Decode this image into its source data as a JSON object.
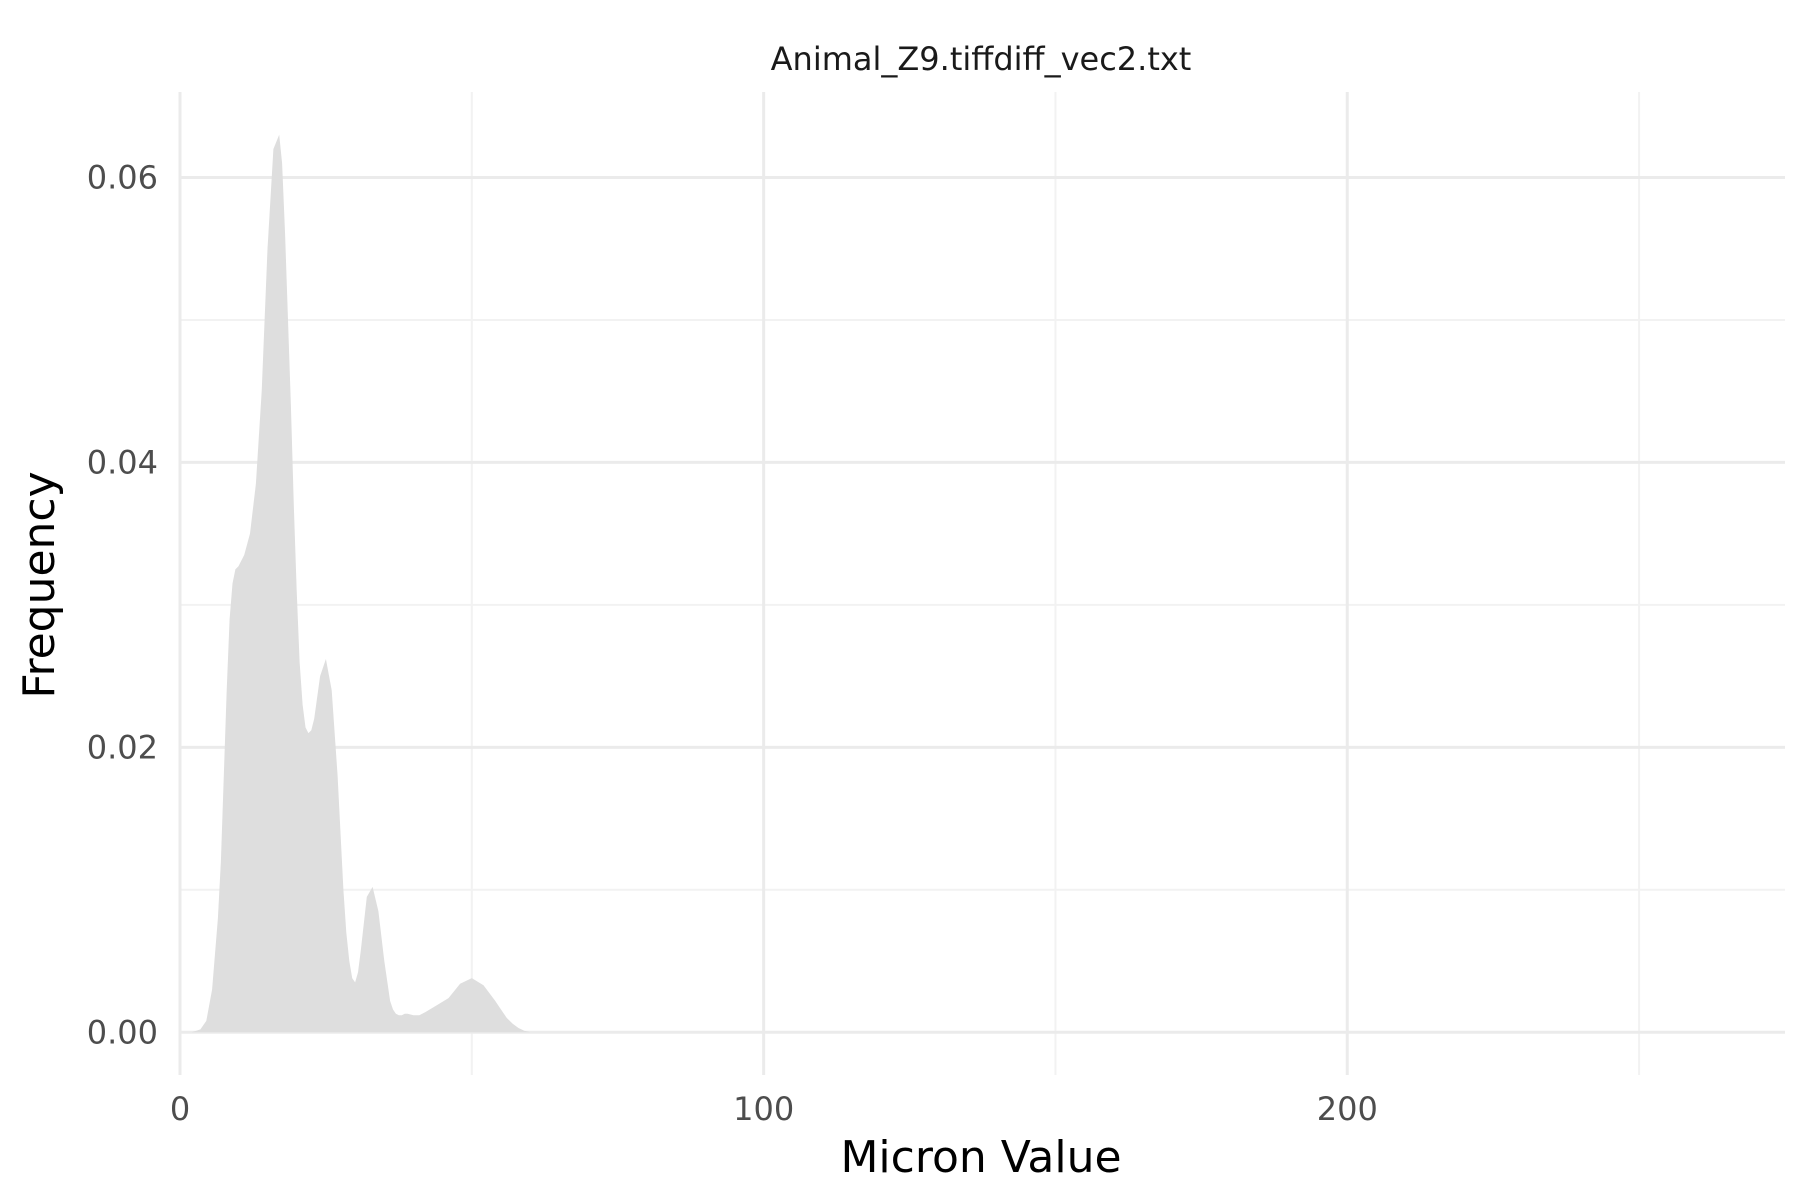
{
  "chart_data": {
    "type": "area",
    "title": "Animal_Z9.tiffdiff_vec2.txt",
    "xlabel": "Micron Value",
    "ylabel": "Frequency",
    "xlim": [
      0,
      275
    ],
    "ylim": [
      -0.003,
      0.066
    ],
    "x_ticks": [
      0,
      100,
      200
    ],
    "x_tick_labels": [
      "0",
      "100",
      "200"
    ],
    "x_minor_ticks": [
      50,
      150,
      250
    ],
    "y_ticks": [
      0,
      0.02,
      0.04,
      0.06
    ],
    "y_tick_labels": [
      "0.00",
      "0.02",
      "0.04",
      "0.06"
    ],
    "y_minor_ticks": [
      0.01,
      0.03,
      0.05
    ],
    "grid": true,
    "colors": {
      "fill": "#dedede",
      "grid_major": "#ebebeb",
      "grid_minor": "#f2f2f2",
      "text": "#4d4d4d"
    },
    "series": [
      {
        "x": [
          2,
          3.5,
          4.5,
          5.5,
          6.5,
          7,
          7.5,
          8,
          8.5,
          9,
          9.5,
          10,
          11,
          12,
          13,
          14,
          15,
          16,
          17,
          17.5,
          18,
          18.5,
          19,
          19.5,
          20,
          20.5,
          21,
          21.5,
          22,
          22.5,
          23,
          24,
          25,
          26,
          27,
          27.5,
          28,
          28.5,
          29,
          29.5,
          30,
          30.5,
          31,
          32,
          33,
          34,
          35,
          36,
          36.5,
          37,
          37.5,
          38,
          38.5,
          39,
          40,
          41,
          42,
          44,
          46,
          48,
          50,
          52,
          54,
          55,
          56,
          57,
          58,
          59,
          60,
          61,
          62,
          63
        ],
        "values": [
          0,
          0.0002,
          0.0008,
          0.003,
          0.008,
          0.012,
          0.018,
          0.024,
          0.029,
          0.0315,
          0.0325,
          0.0327,
          0.0335,
          0.035,
          0.0385,
          0.045,
          0.055,
          0.062,
          0.063,
          0.061,
          0.056,
          0.05,
          0.044,
          0.037,
          0.031,
          0.026,
          0.023,
          0.0214,
          0.021,
          0.0212,
          0.022,
          0.025,
          0.0262,
          0.024,
          0.018,
          0.014,
          0.01,
          0.007,
          0.005,
          0.0038,
          0.0035,
          0.0042,
          0.0058,
          0.0095,
          0.0102,
          0.0085,
          0.005,
          0.0022,
          0.0016,
          0.0013,
          0.0012,
          0.0012,
          0.0013,
          0.0013,
          0.0012,
          0.0012,
          0.0014,
          0.0019,
          0.0024,
          0.0034,
          0.0038,
          0.0033,
          0.0022,
          0.0016,
          0.001,
          0.0006,
          0.0003,
          0.0001,
          0,
          0,
          0,
          0
        ]
      }
    ]
  }
}
